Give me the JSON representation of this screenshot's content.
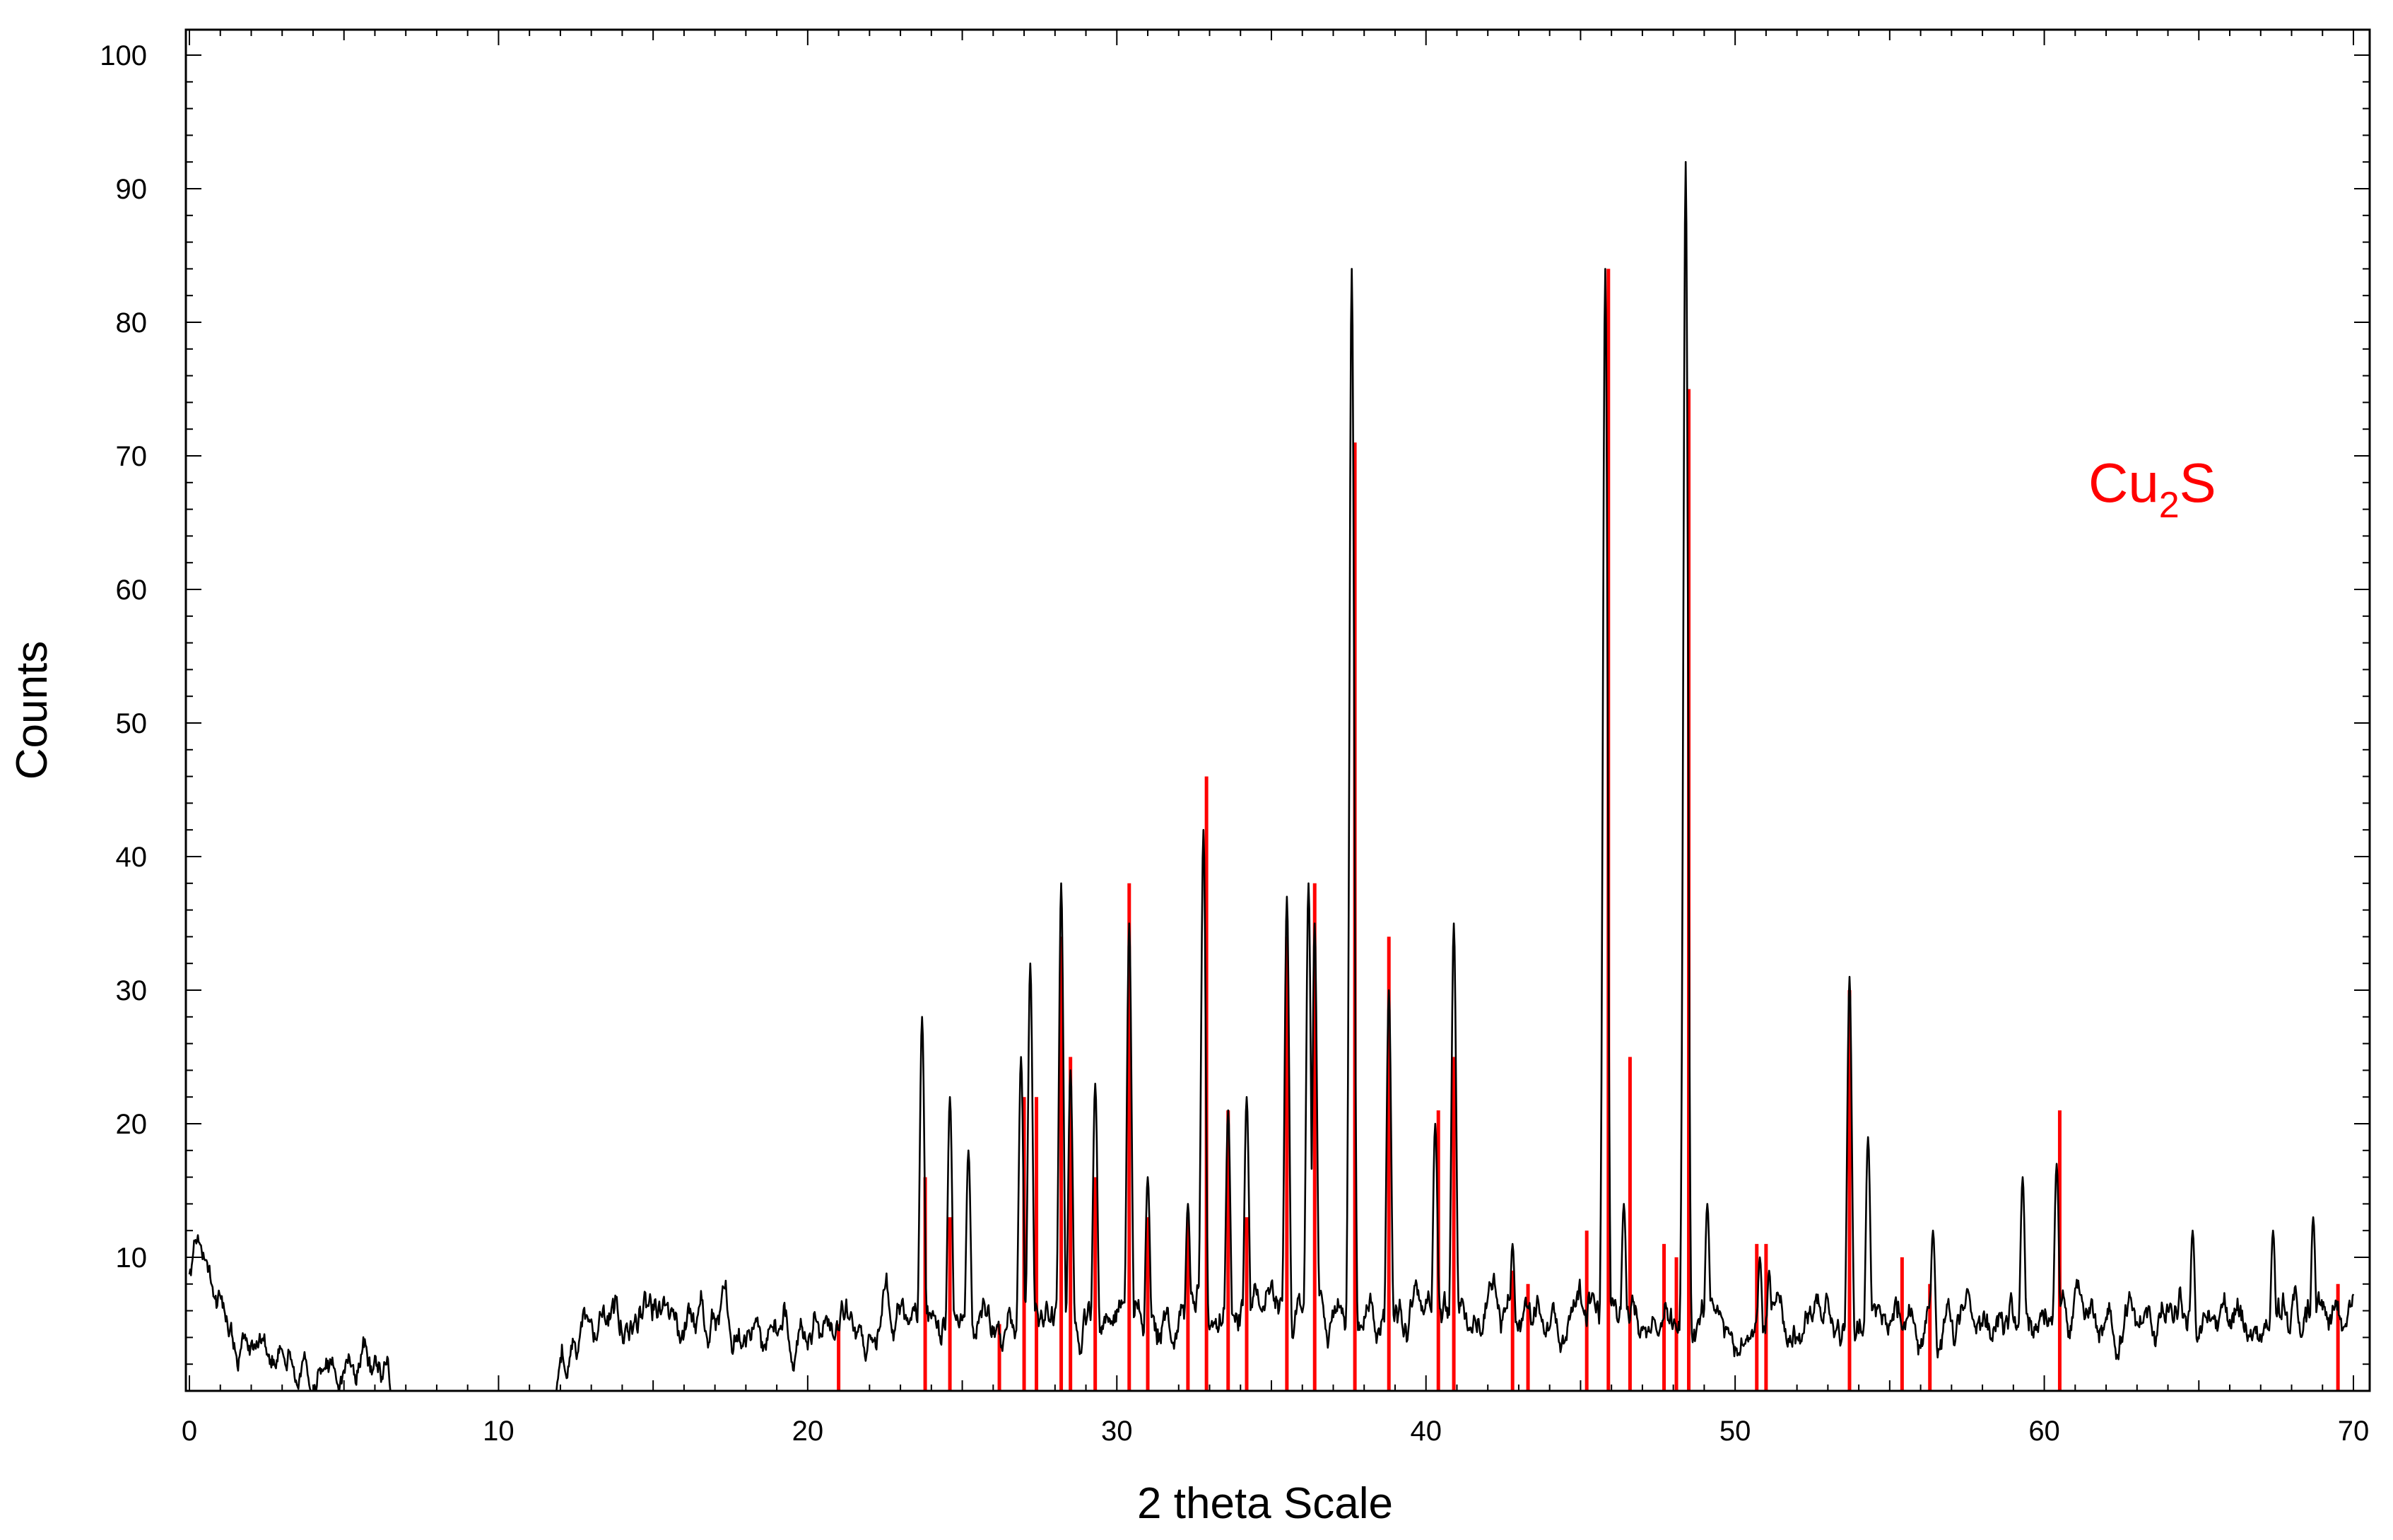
{
  "chart_data": {
    "type": "line",
    "title": "",
    "xlabel": "2 theta Scale",
    "ylabel": "Counts",
    "xlim": [
      0,
      70
    ],
    "ylim": [
      0,
      100
    ],
    "x_ticks": [
      0,
      10,
      20,
      30,
      40,
      50,
      60,
      70
    ],
    "y_ticks": [
      10,
      20,
      30,
      40,
      50,
      60,
      70,
      80,
      90,
      100
    ],
    "grid": false,
    "legend": "none",
    "annotation": {
      "base": "Cu",
      "sub": "2",
      "tail": "S",
      "color": "#ff0000"
    },
    "series": [
      {
        "type": "line",
        "color": "#000000",
        "peaks": [
          [
            23.7,
            28
          ],
          [
            24.6,
            22
          ],
          [
            25.2,
            18
          ],
          [
            26.9,
            25
          ],
          [
            27.2,
            32
          ],
          [
            28.2,
            38
          ],
          [
            28.5,
            24
          ],
          [
            29.3,
            23
          ],
          [
            30.4,
            35
          ],
          [
            31.0,
            16
          ],
          [
            32.3,
            14
          ],
          [
            32.8,
            42
          ],
          [
            33.6,
            21
          ],
          [
            34.2,
            22
          ],
          [
            35.5,
            37
          ],
          [
            36.2,
            38
          ],
          [
            36.4,
            35
          ],
          [
            37.6,
            84
          ],
          [
            38.8,
            30
          ],
          [
            40.3,
            20
          ],
          [
            40.9,
            35
          ],
          [
            42.8,
            11
          ],
          [
            45.8,
            84
          ],
          [
            46.4,
            14
          ],
          [
            48.4,
            92
          ],
          [
            49.1,
            14
          ],
          [
            50.8,
            10
          ],
          [
            51.1,
            9
          ],
          [
            53.7,
            31
          ],
          [
            54.3,
            19
          ],
          [
            56.4,
            12
          ],
          [
            59.3,
            16
          ],
          [
            60.4,
            17
          ],
          [
            64.8,
            12
          ],
          [
            67.4,
            12
          ],
          [
            68.7,
            13
          ]
        ],
        "baseline": [
          [
            0,
            7
          ],
          [
            0.3,
            11
          ],
          [
            1.0,
            6
          ],
          [
            2.0,
            3
          ],
          [
            3.5,
            1.5
          ],
          [
            5.0,
            1.5
          ],
          [
            6.0,
            1.2
          ],
          [
            7.0,
            0
          ],
          [
            10.0,
            0
          ],
          [
            11.8,
            0
          ],
          [
            12.5,
            5
          ],
          [
            16.0,
            5
          ],
          [
            22.0,
            5
          ],
          [
            35.0,
            6
          ],
          [
            42.0,
            6
          ],
          [
            50.0,
            5
          ],
          [
            70.0,
            5
          ]
        ],
        "noise_amplitude": 3.5
      },
      {
        "type": "stick",
        "color": "#ff0000",
        "values": [
          [
            21.0,
            5
          ],
          [
            23.8,
            16
          ],
          [
            24.6,
            13
          ],
          [
            26.2,
            5
          ],
          [
            27.0,
            22
          ],
          [
            27.4,
            22
          ],
          [
            28.2,
            34
          ],
          [
            28.5,
            25
          ],
          [
            29.3,
            16
          ],
          [
            30.4,
            38
          ],
          [
            31.0,
            13
          ],
          [
            32.3,
            13
          ],
          [
            32.9,
            46
          ],
          [
            33.6,
            21
          ],
          [
            34.2,
            13
          ],
          [
            35.5,
            34
          ],
          [
            36.4,
            38
          ],
          [
            37.7,
            71
          ],
          [
            38.8,
            34
          ],
          [
            40.4,
            21
          ],
          [
            40.9,
            25
          ],
          [
            42.8,
            9
          ],
          [
            43.3,
            8
          ],
          [
            45.2,
            12
          ],
          [
            45.9,
            84
          ],
          [
            46.6,
            25
          ],
          [
            47.7,
            11
          ],
          [
            48.1,
            10
          ],
          [
            48.5,
            75
          ],
          [
            50.7,
            11
          ],
          [
            51.0,
            11
          ],
          [
            53.7,
            30
          ],
          [
            55.4,
            10
          ],
          [
            56.3,
            8
          ],
          [
            60.5,
            21
          ],
          [
            69.5,
            8
          ]
        ]
      }
    ]
  }
}
